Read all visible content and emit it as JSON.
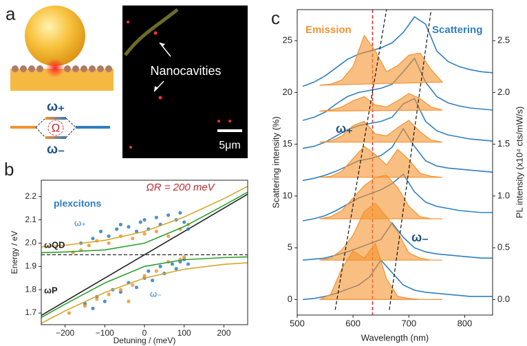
{
  "panel_labels": [
    "a",
    "b",
    "c"
  ],
  "illustration": {
    "omega_plus": "ω₊",
    "rabi": "Ω",
    "omega_minus": "ω₋",
    "annotation": "Nanocavities",
    "scale_bar": "5μm"
  },
  "chart_data": [
    {
      "type": "scatter",
      "x_label": "Detuning / (meV)",
      "y_label": "Energy / eV",
      "annotations": [
        "ΩR = 200 meV",
        "plexcitons",
        "ω₊",
        "ω₋",
        "ωQD",
        "ωP"
      ],
      "xlim": [
        -260,
        260
      ],
      "xticks": [
        {
          "value": -200,
          "label": "−200"
        },
        {
          "value": -100,
          "label": "−100"
        },
        0,
        100,
        200
      ],
      "ylim": [
        1.65,
        2.27
      ],
      "yticks": [
        1.7,
        1.8,
        1.9,
        {
          "value": 2,
          "label": "2.0"
        },
        2.1,
        2.2
      ],
      "series": [
        {
          "kind": "line",
          "color": "#222222",
          "x": [
            -260,
            260
          ],
          "values": [
            1.69,
            2.21
          ]
        },
        {
          "kind": "line",
          "color": "#222222",
          "dash": true,
          "x": [
            -260,
            260
          ],
          "values": [
            1.95,
            1.95
          ]
        },
        {
          "kind": "points",
          "color": "#2f7ec1",
          "x": [
            -160,
            -130,
            -110,
            -90,
            -70,
            -60,
            -40,
            -20,
            -10,
            0,
            10,
            30,
            40,
            60,
            80,
            90,
            100,
            110
          ],
          "values": [
            2.0,
            2.02,
            2.05,
            2.03,
            2.06,
            2.08,
            2.07,
            2.05,
            2.09,
            2.1,
            2.06,
            2.11,
            2.08,
            2.12,
            2.1,
            2.13,
            2.09,
            2.06
          ]
        },
        {
          "kind": "points",
          "color": "#2f7ec1",
          "x": [
            -150,
            -120,
            -100,
            -80,
            -60,
            -40,
            -20,
            0,
            10,
            20,
            40,
            50,
            70,
            80,
            90,
            100,
            110,
            -130
          ],
          "values": [
            1.74,
            1.77,
            1.75,
            1.8,
            1.79,
            1.83,
            1.81,
            1.85,
            1.88,
            1.84,
            1.9,
            1.87,
            1.91,
            1.89,
            1.92,
            1.93,
            1.91,
            1.72
          ]
        },
        {
          "kind": "points",
          "color": "#f5922f",
          "x": [
            -180,
            -160,
            -140,
            -120,
            -90,
            -60,
            -30,
            0,
            30,
            60,
            90,
            110
          ],
          "values": [
            1.96,
            1.97,
            1.99,
            2.01,
            2.0,
            2.03,
            2.02,
            2.04,
            2.05,
            2.03,
            2.06,
            2.08
          ]
        },
        {
          "kind": "points",
          "color": "#f5922f",
          "x": [
            -190,
            -150,
            -120,
            -90,
            -60,
            -30,
            0,
            30,
            60,
            90,
            100,
            -40
          ],
          "values": [
            1.7,
            1.73,
            1.76,
            1.78,
            1.8,
            1.82,
            1.86,
            1.88,
            1.92,
            1.93,
            1.94,
            1.75
          ]
        },
        {
          "kind": "line",
          "color": "#2ca02c",
          "x": [
            -260,
            -200,
            -100,
            0,
            100,
            200,
            260
          ],
          "values": [
            1.959,
            1.962,
            1.971,
            2.0,
            2.071,
            2.162,
            2.219
          ]
        },
        {
          "kind": "line",
          "color": "#2ca02c",
          "x": [
            -260,
            -200,
            -100,
            0,
            100,
            200,
            260
          ],
          "values": [
            1.681,
            1.738,
            1.829,
            1.9,
            1.929,
            1.938,
            1.941
          ]
        },
        {
          "kind": "line",
          "color": "#d4a72c",
          "x": [
            -260,
            -200,
            -100,
            0,
            100,
            200,
            260
          ],
          "values": [
            1.984,
            1.991,
            2.012,
            2.05,
            2.112,
            2.191,
            2.244
          ]
        },
        {
          "kind": "line",
          "color": "#d4a72c",
          "x": [
            -260,
            -200,
            -100,
            0,
            100,
            200,
            260
          ],
          "values": [
            1.656,
            1.709,
            1.788,
            1.85,
            1.888,
            1.909,
            1.916
          ]
        }
      ]
    },
    {
      "type": "line",
      "x_label": "Wavelength (nm)",
      "y_label": "Scattering intensity (%)",
      "y2_label": "PL intensity (x10⁴ cts/mW/s)",
      "annotations": [
        "Emission",
        "Scattering",
        "ω₊",
        "ω₋"
      ],
      "xlim": [
        500,
        850
      ],
      "xticks": [
        500,
        600,
        700,
        800
      ],
      "ylim": [
        -1.5,
        28
      ],
      "yticks": [
        0,
        5,
        10,
        15,
        20,
        25
      ],
      "y2lim": [
        -0.15,
        2.8
      ],
      "y2ticks": [
        {
          "value": 0,
          "label": "0.0"
        },
        0.5,
        {
          "value": 1,
          "label": "1.0"
        },
        1.5,
        {
          "value": 2,
          "label": "2.0"
        },
        2.5
      ],
      "ref_line": 635,
      "ref_color": "#e0282e",
      "series": [
        {
          "color": "#2f7ec1",
          "x": [
            510,
            530,
            550,
            570,
            590,
            610,
            630,
            650,
            670,
            690,
            710,
            730,
            750,
            770,
            790,
            810,
            830,
            850
          ],
          "values": [
            0,
            0.1,
            0.3,
            0.6,
            1.0,
            1.4,
            2.2,
            3.8,
            2.6,
            1.4,
            0.9,
            0.7,
            0.6,
            0.5,
            0.4,
            0.3,
            0.3,
            0.3
          ]
        },
        {
          "color": "#2f7ec1",
          "x": [
            510,
            530,
            550,
            570,
            590,
            610,
            630,
            650,
            670,
            690,
            710,
            730,
            750,
            770,
            790,
            810,
            830,
            850
          ],
          "values": [
            3.8,
            3.9,
            4.0,
            4.3,
            4.6,
            5.0,
            5.4,
            5.8,
            7.4,
            6.0,
            5.0,
            4.6,
            4.4,
            4.3,
            4.2,
            4.1,
            4.0,
            4.0
          ]
        },
        {
          "color": "#2f7ec1",
          "x": [
            510,
            530,
            550,
            570,
            590,
            610,
            630,
            650,
            670,
            690,
            710,
            730,
            750,
            770,
            790,
            810,
            830,
            850
          ],
          "values": [
            7.6,
            7.8,
            8.1,
            8.6,
            9.2,
            9.8,
            10.2,
            10.6,
            11.2,
            12.1,
            10.4,
            9.4,
            9.0,
            8.8,
            8.6,
            8.5,
            8.4,
            8.4
          ]
        },
        {
          "color": "#2f7ec1",
          "x": [
            510,
            530,
            550,
            570,
            590,
            610,
            630,
            650,
            670,
            690,
            710,
            730,
            750,
            770,
            790,
            810,
            830,
            850
          ],
          "values": [
            11.5,
            11.7,
            12.0,
            12.4,
            12.9,
            13.4,
            13.6,
            13.9,
            14.7,
            16.5,
            14.8,
            13.4,
            12.9,
            12.7,
            12.6,
            12.5,
            12.4,
            12.3
          ]
        },
        {
          "color": "#2f7ec1",
          "x": [
            510,
            530,
            550,
            570,
            590,
            610,
            630,
            650,
            670,
            690,
            710,
            730,
            750,
            770,
            790,
            810,
            830,
            850
          ],
          "values": [
            14.6,
            14.8,
            15.2,
            15.8,
            16.4,
            16.8,
            17.0,
            17.2,
            17.6,
            18.9,
            19.4,
            17.2,
            16.3,
            15.9,
            15.7,
            15.5,
            15.4,
            15.3
          ]
        },
        {
          "color": "#2f7ec1",
          "x": [
            510,
            530,
            550,
            570,
            590,
            610,
            630,
            650,
            670,
            690,
            710,
            730,
            750,
            770,
            790,
            810,
            830,
            850
          ],
          "values": [
            17.3,
            17.6,
            18.1,
            18.9,
            19.6,
            20.0,
            20.2,
            20.4,
            20.8,
            22.0,
            23.3,
            21.0,
            19.6,
            19.0,
            18.7,
            18.5,
            18.4,
            18.3
          ]
        },
        {
          "color": "#2f7ec1",
          "x": [
            510,
            530,
            550,
            570,
            590,
            610,
            630,
            650,
            670,
            690,
            710,
            730,
            750,
            770,
            790,
            810,
            830,
            850
          ],
          "values": [
            20.6,
            21.0,
            21.6,
            22.4,
            23.2,
            23.7,
            24.0,
            24.3,
            24.8,
            25.8,
            27.3,
            26.6,
            24.0,
            23.0,
            22.5,
            22.2,
            22.0,
            21.9
          ]
        },
        {
          "color": "#f5922f",
          "axis": "y2",
          "fill": true,
          "x": [
            540,
            560,
            580,
            600,
            620,
            640,
            660,
            680,
            700,
            720,
            740,
            760
          ],
          "values": [
            0,
            0.05,
            0.3,
            0.47,
            0.4,
            0.54,
            0.2,
            0.03,
            0.01,
            0,
            0,
            0
          ]
        },
        {
          "color": "#f5922f",
          "axis": "y2",
          "fill": true,
          "x": [
            540,
            560,
            580,
            600,
            620,
            640,
            660,
            680,
            700,
            720,
            740,
            760
          ],
          "values": [
            0.38,
            0.4,
            0.48,
            0.62,
            0.85,
            0.93,
            0.8,
            0.65,
            0.45,
            0.4,
            0.38,
            0.38
          ]
        },
        {
          "color": "#f5922f",
          "axis": "y2",
          "fill": true,
          "x": [
            540,
            560,
            580,
            600,
            620,
            640,
            660,
            680,
            700,
            720,
            740,
            760
          ],
          "values": [
            0.78,
            0.8,
            0.86,
            0.98,
            1.1,
            1.18,
            1.2,
            1.08,
            0.9,
            0.8,
            0.78,
            0.78
          ]
        },
        {
          "color": "#f5922f",
          "axis": "y2",
          "fill": true,
          "x": [
            540,
            560,
            580,
            600,
            620,
            640,
            660,
            680,
            700,
            720,
            740,
            760
          ],
          "values": [
            1.18,
            1.19,
            1.24,
            1.36,
            1.48,
            1.4,
            1.3,
            1.45,
            1.35,
            1.22,
            1.19,
            1.18
          ]
        },
        {
          "color": "#f5922f",
          "axis": "y2",
          "fill": true,
          "x": [
            540,
            560,
            580,
            600,
            620,
            640,
            660,
            680,
            700,
            720,
            740,
            760
          ],
          "values": [
            1.52,
            1.53,
            1.58,
            1.68,
            1.72,
            1.6,
            1.58,
            1.66,
            1.73,
            1.62,
            1.54,
            1.52
          ]
        },
        {
          "color": "#f5922f",
          "axis": "y2",
          "fill": true,
          "x": [
            540,
            560,
            580,
            600,
            620,
            640,
            660,
            680,
            700,
            720,
            740,
            760
          ],
          "values": [
            1.82,
            1.83,
            1.86,
            1.92,
            1.96,
            1.88,
            1.86,
            1.92,
            1.99,
            1.94,
            1.86,
            1.83
          ]
        },
        {
          "color": "#f5922f",
          "axis": "y2",
          "fill": true,
          "x": [
            540,
            560,
            580,
            600,
            620,
            640,
            660,
            680,
            700,
            720,
            740,
            760
          ],
          "values": [
            2.07,
            2.08,
            2.12,
            2.25,
            2.55,
            2.4,
            2.2,
            2.26,
            2.36,
            2.38,
            2.22,
            2.1
          ]
        },
        {
          "color": "#111111",
          "dash": true,
          "x": [
            568,
            660
          ],
          "values": [
            -1,
            28
          ]
        },
        {
          "color": "#111111",
          "dash": true,
          "x": [
            665,
            740
          ],
          "values": [
            -1,
            28
          ]
        }
      ]
    }
  ]
}
